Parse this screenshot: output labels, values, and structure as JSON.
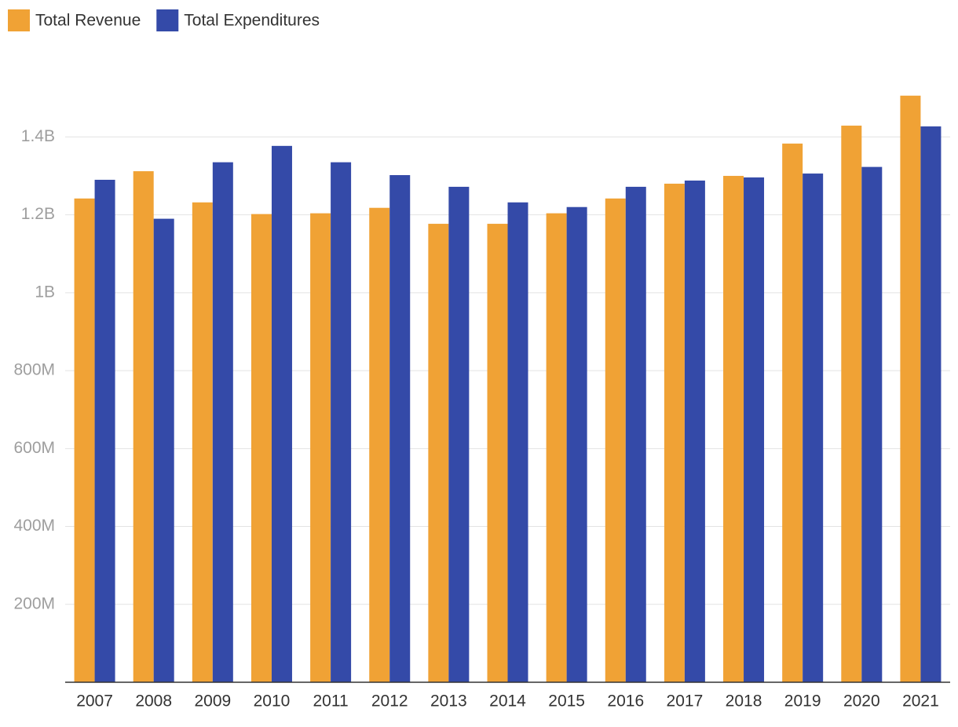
{
  "chart_data": {
    "type": "bar",
    "categories": [
      "2007",
      "2008",
      "2009",
      "2010",
      "2011",
      "2012",
      "2013",
      "2014",
      "2015",
      "2016",
      "2017",
      "2018",
      "2019",
      "2020",
      "2021"
    ],
    "series": [
      {
        "name": "Total Revenue",
        "color": "#f0a235",
        "values": [
          1242000000,
          1312000000,
          1232000000,
          1202000000,
          1204000000,
          1218000000,
          1177000000,
          1177000000,
          1204000000,
          1242000000,
          1280000000,
          1300000000,
          1383000000,
          1429000000,
          1506000000
        ]
      },
      {
        "name": "Total Expenditures",
        "color": "#344aa8",
        "values": [
          1290000000,
          1190000000,
          1335000000,
          1377000000,
          1335000000,
          1302000000,
          1272000000,
          1232000000,
          1220000000,
          1272000000,
          1288000000,
          1296000000,
          1306000000,
          1323000000,
          1427000000
        ]
      }
    ],
    "ylim": [
      0,
      1550000000
    ],
    "yticks": [
      {
        "value": 200000000,
        "label": "200M"
      },
      {
        "value": 400000000,
        "label": "400M"
      },
      {
        "value": 600000000,
        "label": "600M"
      },
      {
        "value": 800000000,
        "label": "800M"
      },
      {
        "value": 1000000000,
        "label": "1B"
      },
      {
        "value": 1200000000,
        "label": "1.2B"
      },
      {
        "value": 1400000000,
        "label": "1.4B"
      }
    ],
    "grid": true,
    "legend": "top-left"
  }
}
